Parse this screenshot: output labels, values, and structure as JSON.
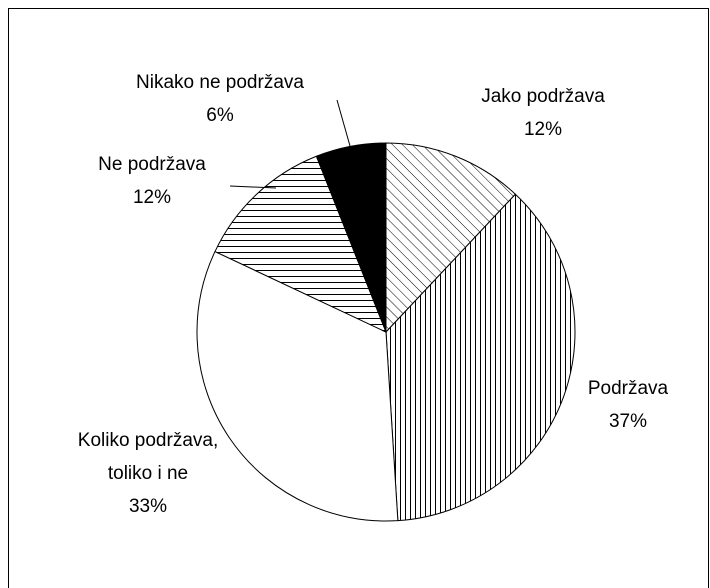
{
  "chart_data": {
    "type": "pie",
    "categories": [
      "Jako podržava",
      "Podržava",
      "Koliko podržava, toliko i ne",
      "Ne podržava",
      "Nikako ne podržava"
    ],
    "values": [
      12,
      37,
      33,
      12,
      6
    ],
    "value_labels": [
      "12%",
      "37%",
      "33%",
      "12%",
      "6%"
    ],
    "patterns": [
      "diagonal",
      "vertical",
      "none",
      "horizontal",
      "solid"
    ],
    "color": "#000000"
  }
}
